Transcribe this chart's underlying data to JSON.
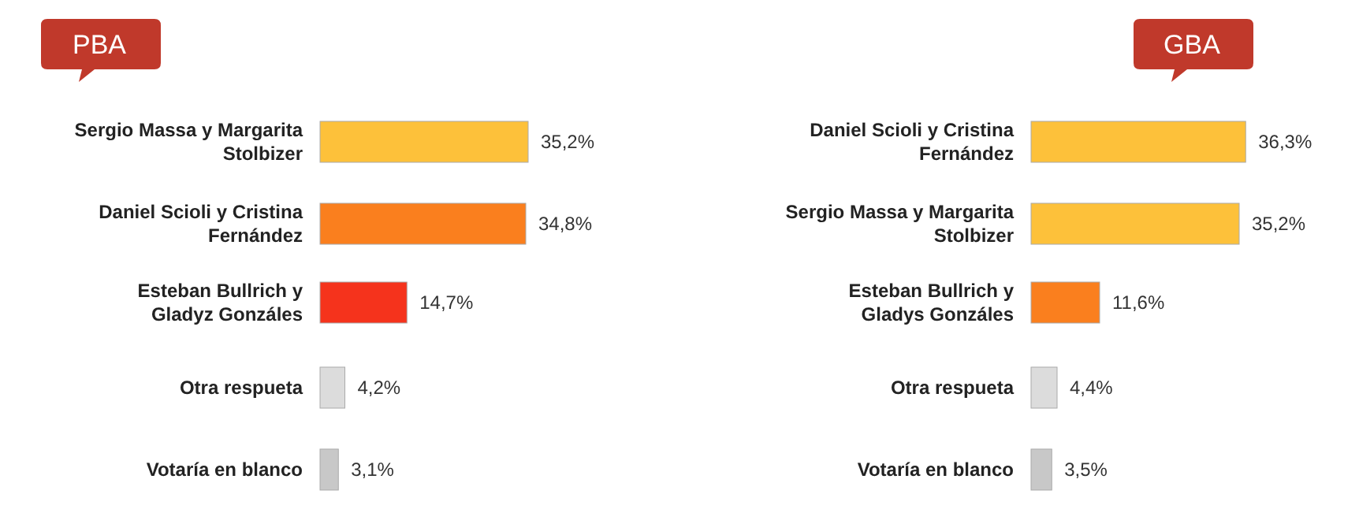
{
  "chart_data": [
    {
      "type": "bar",
      "orientation": "horizontal",
      "title": "PBA",
      "categories": [
        "Sergio Massa y Margarita Stolbizer",
        "Daniel Scioli y Cristina Fernández",
        "Esteban Bullrich y Gladyz Gonzáles",
        "Otra respueta",
        "Votaría en blanco"
      ],
      "values": [
        35.2,
        34.8,
        14.7,
        4.2,
        3.1
      ],
      "colors": [
        "#fdc13a",
        "#fa7f1e",
        "#f5331c",
        "#dcdcdc",
        "#c8c8c8"
      ],
      "value_labels": [
        "35,2%",
        "34,8%",
        "14,7%",
        "4,2%",
        "3,1%"
      ]
    },
    {
      "type": "bar",
      "orientation": "horizontal",
      "title": "GBA",
      "categories": [
        "Daniel Scioli y Cristina Fernández",
        "Sergio Massa y Margarita Stolbizer",
        "Esteban Bullrich y Gladys Gonzáles",
        "Otra respueta",
        "Votaría en blanco"
      ],
      "values": [
        36.3,
        35.2,
        11.6,
        4.4,
        3.5
      ],
      "colors": [
        "#fdc13a",
        "#fdc13a",
        "#fa7f1e",
        "#dcdcdc",
        "#c8c8c8"
      ],
      "value_labels": [
        "36,3%",
        "35,2%",
        "11,6%",
        "4,4%",
        "3,5%"
      ]
    }
  ]
}
